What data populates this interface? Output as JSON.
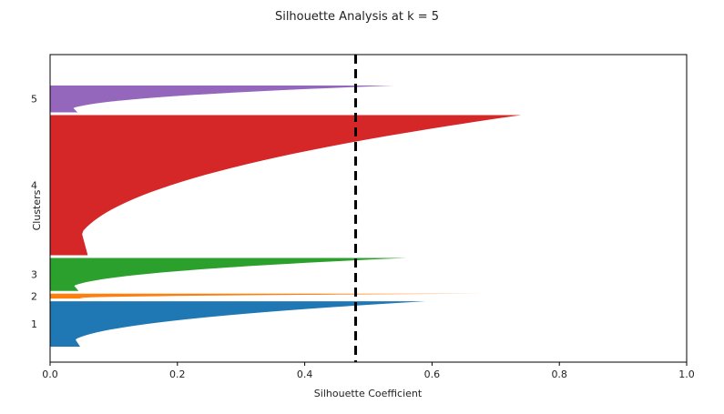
{
  "chart_data": {
    "type": "area",
    "title": "Silhouette Analysis at k = 5",
    "xlabel": "Silhouette Coefficient",
    "ylabel": "Clusters",
    "xlim": [
      0.0,
      1.0
    ],
    "x_ticks": [
      "0.0",
      "0.2",
      "0.4",
      "0.6",
      "0.8",
      "1.0"
    ],
    "x_tick_values": [
      0.0,
      0.2,
      0.4,
      0.6,
      0.8,
      1.0
    ],
    "grid": false,
    "average_silhouette": 0.48,
    "average_line_style": "dashed black",
    "clusters": [
      {
        "label": "1",
        "color": "#1f77b4",
        "max_coefficient": 0.59,
        "min_coefficient": 0.0,
        "relative_size": 0.11
      },
      {
        "label": "2",
        "color": "#ff7f0e",
        "max_coefficient": 0.68,
        "min_coefficient": 0.0,
        "relative_size": 0.012
      },
      {
        "label": "3",
        "color": "#2ca02c",
        "max_coefficient": 0.56,
        "min_coefficient": 0.0,
        "relative_size": 0.08
      },
      {
        "label": "4",
        "color": "#d62728",
        "max_coefficient": 0.74,
        "min_coefficient": 0.0,
        "relative_size": 0.34
      },
      {
        "label": "5",
        "color": "#9467bd",
        "max_coefficient": 0.54,
        "min_coefficient": 0.0,
        "relative_size": 0.065
      }
    ]
  }
}
